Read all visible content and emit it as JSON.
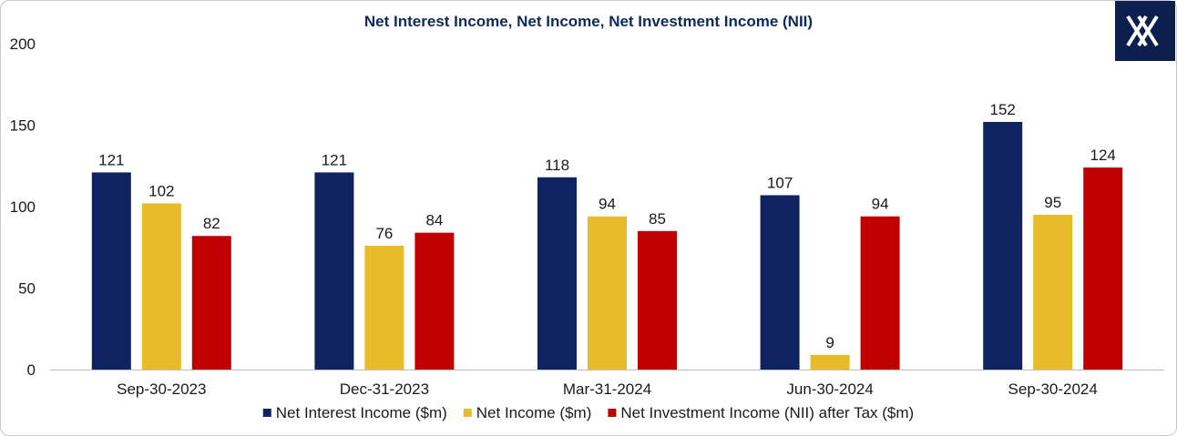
{
  "chart_data": {
    "type": "bar",
    "title": "Net Interest Income, Net Income, Net Investment Income (NII)",
    "categories": [
      "Sep-30-2023",
      "Dec-31-2023",
      "Mar-31-2024",
      "Jun-30-2024",
      "Sep-30-2024"
    ],
    "series": [
      {
        "name": "Net Interest Income ($m)",
        "color": "#0e2360",
        "values": [
          121,
          121,
          118,
          107,
          152
        ]
      },
      {
        "name": "Net Income ($m)",
        "color": "#e8bb2a",
        "values": [
          102,
          76,
          94,
          9,
          95
        ]
      },
      {
        "name": "Net Investment Income (NII)  after Tax  ($m)",
        "color": "#c00000",
        "values": [
          82,
          84,
          85,
          94,
          124
        ]
      }
    ],
    "ylim": [
      0,
      200
    ],
    "yticks": [
      0,
      50,
      100,
      150,
      200
    ],
    "xlabel": "",
    "ylabel": "",
    "legend": "bottom",
    "grid": false
  },
  "logo": {
    "icon": "x-logo-icon",
    "background": "#0d1f4f"
  }
}
